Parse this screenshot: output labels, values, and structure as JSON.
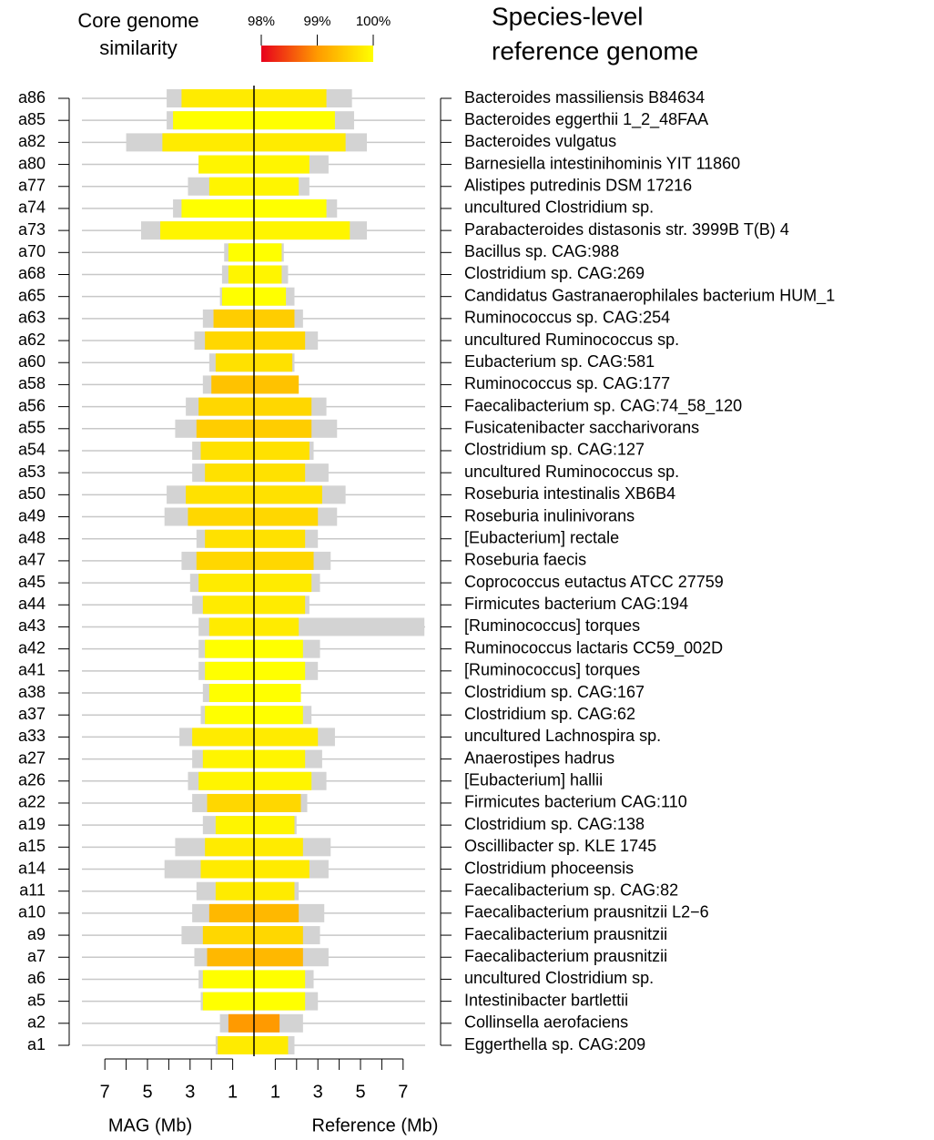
{
  "chart_data": {
    "type": "butterfly",
    "legend_title": [
      "Core genome",
      "similarity"
    ],
    "right_title": [
      "Species-level",
      "reference genome"
    ],
    "xlabel_left": "MAG (Mb)",
    "xlabel_right": "Reference (Mb)",
    "categories": [
      "a86",
      "a85",
      "a82",
      "a80",
      "a77",
      "a74",
      "a73",
      "a70",
      "a68",
      "a65",
      "a63",
      "a62",
      "a60",
      "a58",
      "a56",
      "a55",
      "a54",
      "a53",
      "a50",
      "a49",
      "a48",
      "a47",
      "a45",
      "a44",
      "a43",
      "a42",
      "a41",
      "a38",
      "a37",
      "a33",
      "a27",
      "a26",
      "a22",
      "a19",
      "a15",
      "a14",
      "a11",
      "a10",
      "a9",
      "a7",
      "a6",
      "a5",
      "a2",
      "a1"
    ],
    "references": [
      "Bacteroides massiliensis B84634",
      "Bacteroides eggerthii 1_2_48FAA",
      "Bacteroides vulgatus",
      "Barnesiella intestinihominis YIT 11860",
      "Alistipes putredinis DSM 17216",
      "uncultured Clostridium sp.",
      "Parabacteroides distasonis str. 3999B T(B) 4",
      "Bacillus sp. CAG:988",
      "Clostridium sp. CAG:269",
      "Candidatus Gastranaerophilales bacterium HUM_1",
      "Ruminococcus sp. CAG:254",
      "uncultured Ruminococcus sp.",
      "Eubacterium sp. CAG:581",
      "Ruminococcus sp. CAG:177",
      "Faecalibacterium sp. CAG:74_58_120",
      "Fusicatenibacter saccharivorans",
      "Clostridium sp. CAG:127",
      "uncultured Ruminococcus sp.",
      "Roseburia intestinalis XB6B4",
      "Roseburia inulinivorans",
      "[Eubacterium] rectale",
      "Roseburia faecis",
      "Coprococcus eutactus ATCC 27759",
      "Firmicutes bacterium CAG:194",
      "[Ruminococcus] torques",
      "Ruminococcus lactaris CC59_002D",
      "[Ruminococcus] torques",
      "Clostridium sp. CAG:167",
      "Clostridium sp. CAG:62",
      "uncultured Lachnospira sp.",
      "Anaerostipes hadrus",
      "[Eubacterium] hallii",
      "Firmicutes bacterium CAG:110",
      "Clostridium sp. CAG:138",
      "Oscillibacter sp. KLE 1745",
      "Clostridium phoceensis",
      "Faecalibacterium sp. CAG:82",
      "Faecalibacterium prausnitzii L2−6",
      "Faecalibacterium prausnitzii",
      "Faecalibacterium prausnitzii",
      "uncultured Clostridium sp.",
      "Intestinibacter bartlettii",
      "Collinsella aerofaciens",
      "Eggerthella sp. CAG:209"
    ],
    "mag_total": [
      4.1,
      4.1,
      6.0,
      2.6,
      3.1,
      3.8,
      5.3,
      1.4,
      1.5,
      1.6,
      2.4,
      2.8,
      2.1,
      2.4,
      3.2,
      3.7,
      2.9,
      2.9,
      4.1,
      4.2,
      2.7,
      3.4,
      3.0,
      2.9,
      2.6,
      2.6,
      2.6,
      2.4,
      2.5,
      3.5,
      2.9,
      3.1,
      2.9,
      2.4,
      3.7,
      4.2,
      2.7,
      2.9,
      3.4,
      2.8,
      2.6,
      2.5,
      1.6,
      1.8
    ],
    "mag_core": [
      3.4,
      3.8,
      4.3,
      2.6,
      2.1,
      3.4,
      4.4,
      1.2,
      1.2,
      1.5,
      1.9,
      2.3,
      1.8,
      2.0,
      2.6,
      2.7,
      2.5,
      2.3,
      3.2,
      3.1,
      2.3,
      2.7,
      2.6,
      2.4,
      2.1,
      2.3,
      2.3,
      2.1,
      2.3,
      2.9,
      2.4,
      2.6,
      2.2,
      1.8,
      2.3,
      2.5,
      1.8,
      2.1,
      2.4,
      2.2,
      2.4,
      2.4,
      1.2,
      1.7
    ],
    "ref_core": [
      3.4,
      3.8,
      4.3,
      2.6,
      2.1,
      3.4,
      4.5,
      1.3,
      1.3,
      1.5,
      1.9,
      2.4,
      1.8,
      2.1,
      2.7,
      2.7,
      2.6,
      2.4,
      3.2,
      3.0,
      2.4,
      2.8,
      2.7,
      2.4,
      2.1,
      2.3,
      2.4,
      2.2,
      2.3,
      3.0,
      2.4,
      2.7,
      2.2,
      1.9,
      2.3,
      2.6,
      1.9,
      2.1,
      2.3,
      2.3,
      2.4,
      2.4,
      1.2,
      1.6
    ],
    "ref_total": [
      4.6,
      4.7,
      5.3,
      3.5,
      2.6,
      3.9,
      5.3,
      1.4,
      1.6,
      1.9,
      2.3,
      3.0,
      1.9,
      2.1,
      3.4,
      3.9,
      2.8,
      3.5,
      4.3,
      3.9,
      3.0,
      3.6,
      3.1,
      2.6,
      8.0,
      3.1,
      3.0,
      2.2,
      2.7,
      3.8,
      3.2,
      3.4,
      2.5,
      2.0,
      3.6,
      3.5,
      2.1,
      3.3,
      3.1,
      3.5,
      2.8,
      3.0,
      2.3,
      1.9
    ],
    "similarity": [
      99.8,
      100,
      99.8,
      99.9,
      99.9,
      100,
      99.9,
      100,
      99.9,
      100,
      99.5,
      99.6,
      99.7,
      99.4,
      99.6,
      99.5,
      99.7,
      99.7,
      99.7,
      99.6,
      99.7,
      99.6,
      99.8,
      99.8,
      99.8,
      100,
      100,
      100,
      100,
      99.8,
      99.9,
      99.9,
      99.6,
      99.9,
      99.8,
      99.8,
      99.8,
      99.3,
      99.6,
      99.3,
      100,
      100,
      99.0,
      99.8
    ],
    "total_color": "#d3d3d3",
    "colorscale": [
      {
        "value": 98,
        "color": "#e8001c"
      },
      {
        "value": 99,
        "color": "#ff9a00"
      },
      {
        "value": 100,
        "color": "#ffff00"
      }
    ],
    "colorbar_ticks": [
      {
        "value": 98,
        "label": "98%"
      },
      {
        "value": 99,
        "label": "99%"
      },
      {
        "value": 100,
        "label": "100%"
      }
    ],
    "xlim": [
      0,
      8
    ],
    "xticks": [
      1,
      3,
      5,
      7
    ],
    "xminor": [
      2,
      4,
      6
    ]
  }
}
